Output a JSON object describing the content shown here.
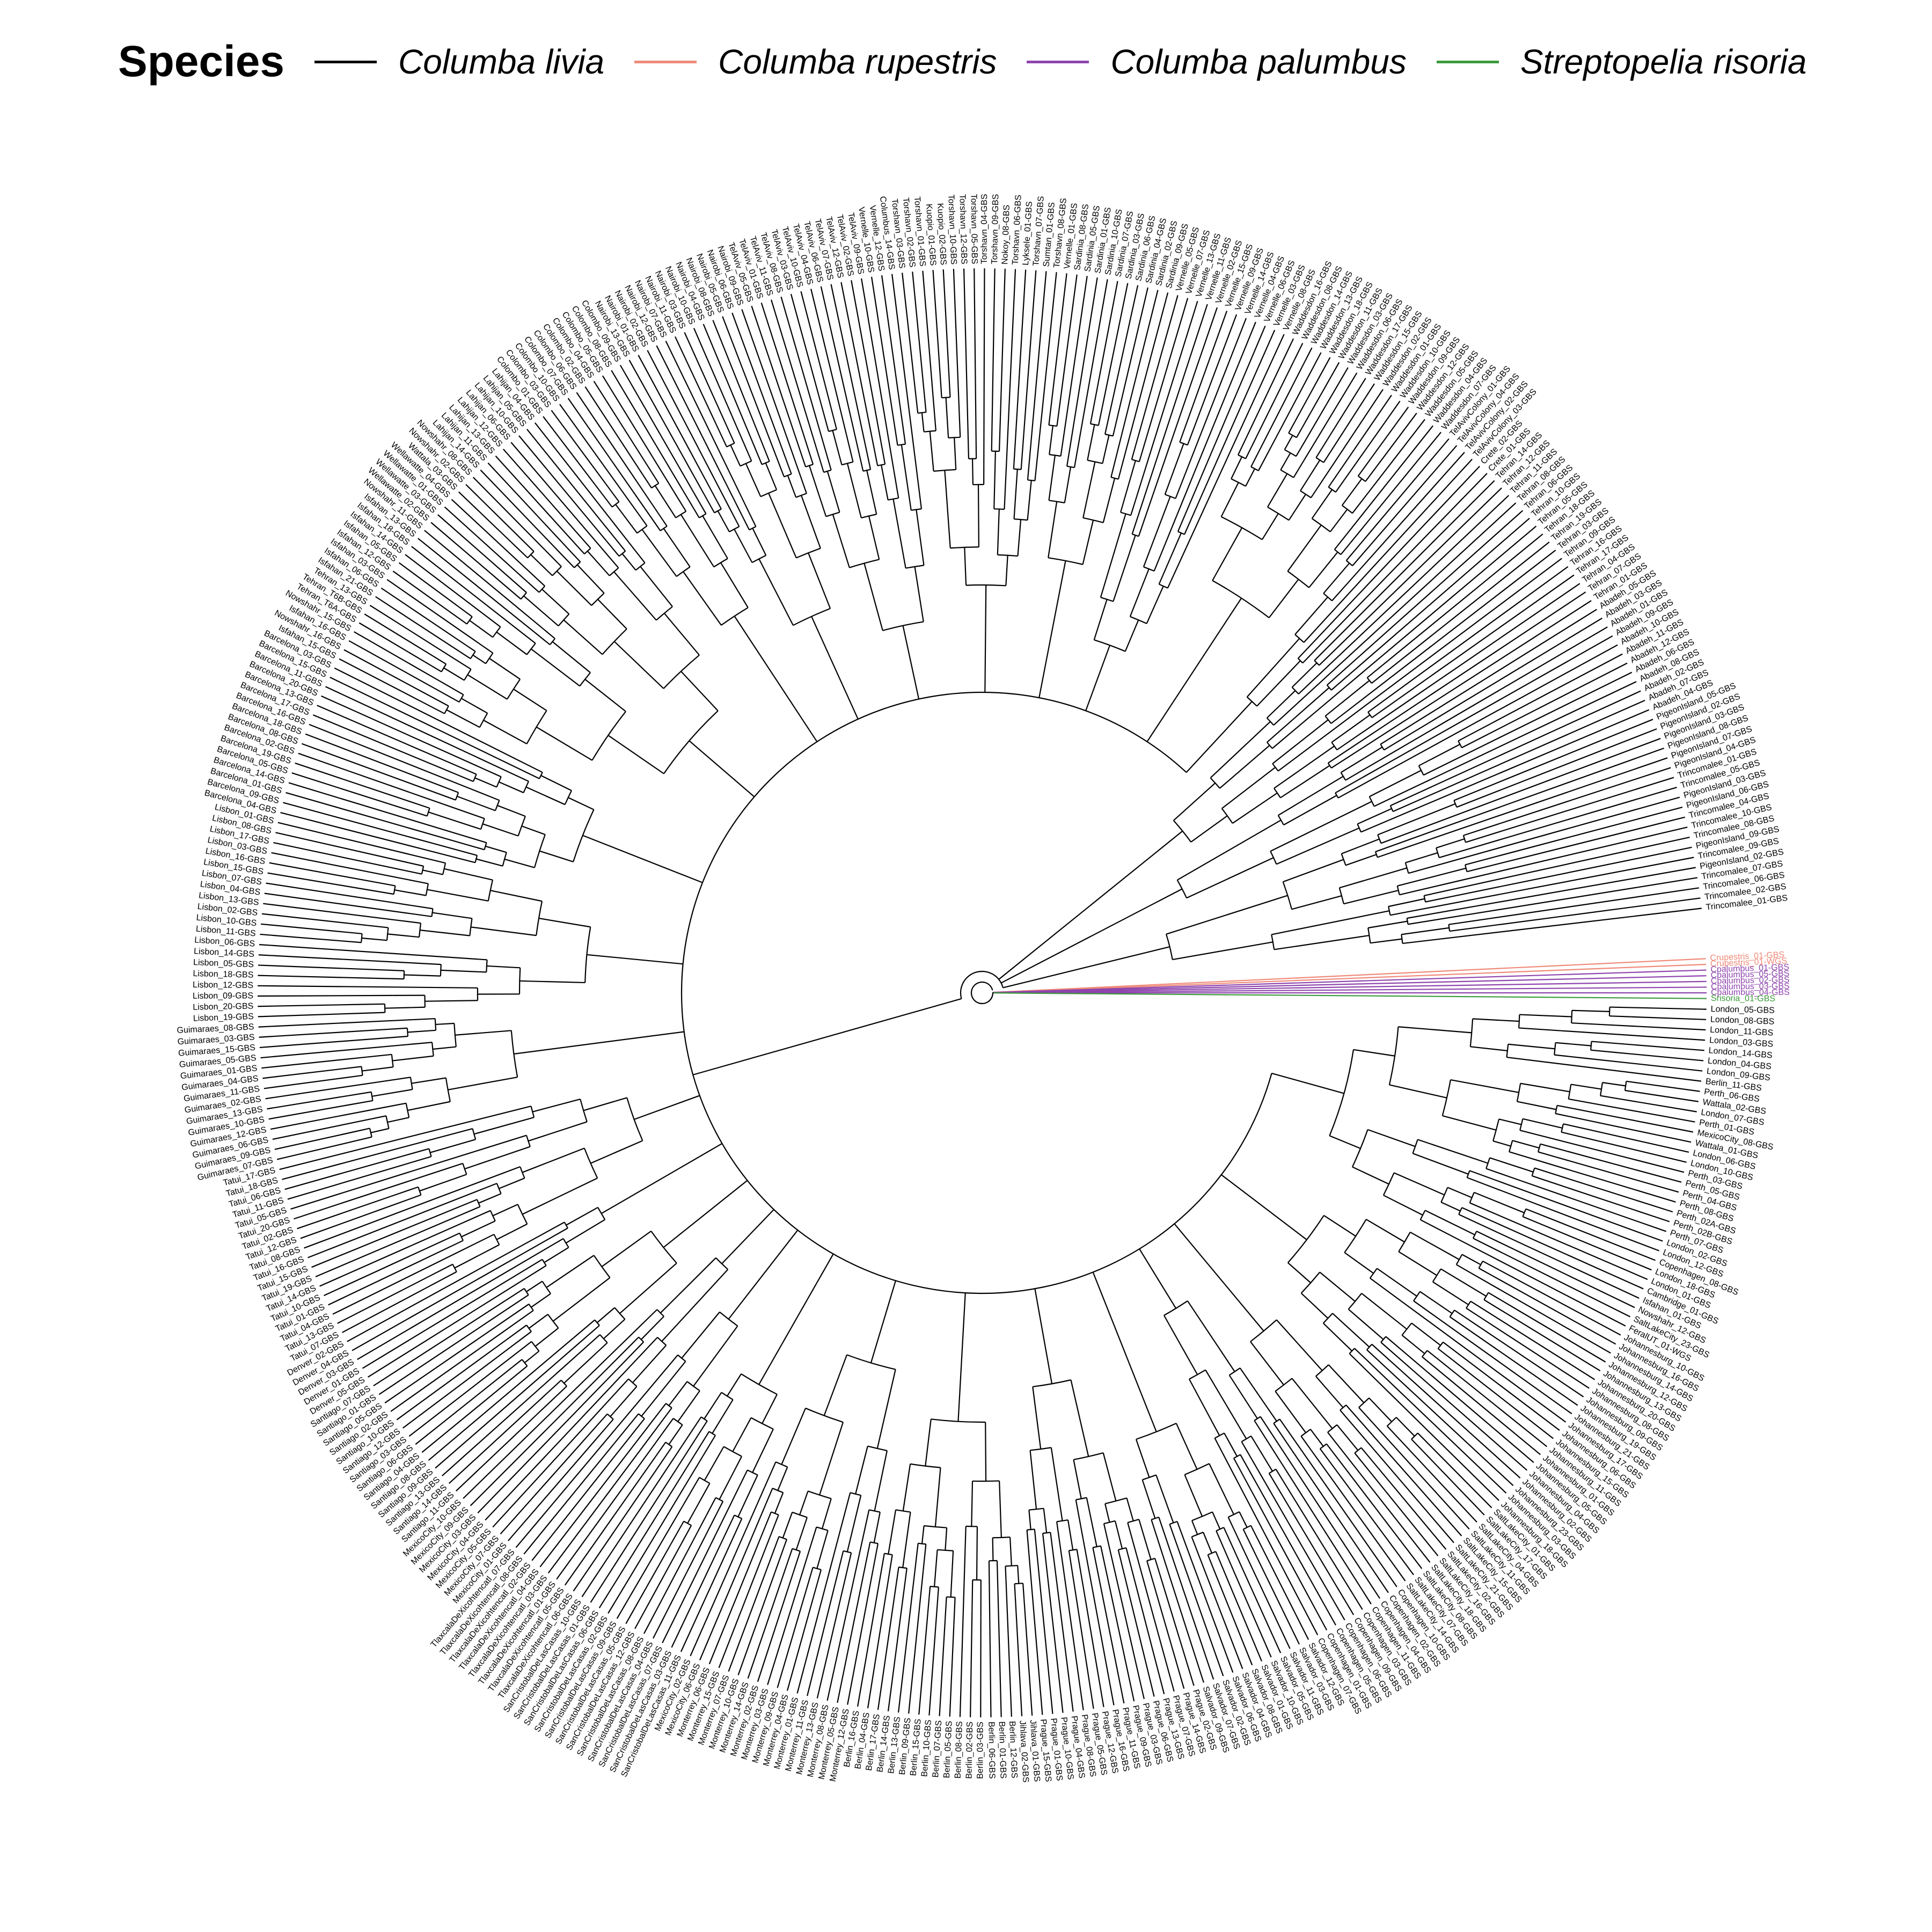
{
  "legend": {
    "title": "Species",
    "entries": [
      {
        "label": "Columba livia",
        "color": "#000000"
      },
      {
        "label": "Columba rupestris",
        "color": "#ef8a79"
      },
      {
        "label": "Columba palumbus",
        "color": "#8e44ad"
      },
      {
        "label": "Streptopelia risoria",
        "color": "#3c9a3c"
      }
    ]
  },
  "outgroups": [
    {
      "label": "Crupestris_01-GBS",
      "species": "rupestris"
    },
    {
      "label": "Crupestris_01-WGS",
      "species": "rupestris"
    },
    {
      "label": "Cpalumbus_01-GBS",
      "species": "palumbus"
    },
    {
      "label": "Cpalumbus_05-GBS",
      "species": "palumbus"
    },
    {
      "label": "Cpalumbus_02-GBS",
      "species": "palumbus"
    },
    {
      "label": "Cpalumbus_03-GBS",
      "species": "palumbus"
    },
    {
      "label": "Cpalumbus_04-GBS",
      "species": "palumbus"
    },
    {
      "label": "Srisoria_01-GBS",
      "species": "risoria"
    }
  ],
  "clades": [
    {
      "name": "London",
      "tips": [
        "London_05-GBS",
        "London_08-GBS",
        "London_11-GBS",
        "London_03-GBS",
        "London_14-GBS",
        "London_04-GBS",
        "London_09-GBS",
        "Berlin_11-GBS",
        "Perth_06-GBS",
        "Wattala_02-GBS",
        "London_07-GBS",
        "Perth_01-GBS",
        "MexicoCity_08-GBS",
        "Wattala_01-GBS",
        "London_06-GBS",
        "London_10-GBS",
        "Perth_03-GBS",
        "Perth_05-GBS",
        "Perth_04-GBS",
        "Perth_08-GBS",
        "Perth_02A-GBS",
        "Perth_02B-GBS",
        "Perth_07-GBS",
        "London_02-GBS",
        "London_12-GBS",
        "Copenhagen_08-GBS",
        "London_18-GBS",
        "London_01-GBS",
        "Cambridge_01-GBS",
        "Isfahan_01-GBS",
        "Nowshahr_12-GBS",
        "SaltLakeCity_23-GBS",
        "FeralUT_01-WGS"
      ]
    },
    {
      "name": "Johannesburg",
      "tips": [
        "Johannesburg_10-GBS",
        "Johannesburg_16-GBS",
        "Johannesburg_14-GBS",
        "Johannesburg_12-GBS",
        "Johannesburg_13-GBS",
        "Johannesburg_20-GBS",
        "Johannesburg_08-GBS",
        "Johannesburg_09-GBS",
        "Johannesburg_19-GBS",
        "Johannesburg_21-GBS",
        "Johannesburg_17-GBS",
        "Johannesburg_06-GBS",
        "Johannesburg_15-GBS",
        "Johannesburg_11-GBS",
        "Johannesburg_01-GBS",
        "Johannesburg_05-GBS",
        "Johannesburg_04-GBS",
        "Johannesburg_02-GBS",
        "Johannesburg_23-GBS",
        "Johannesburg_03-GBS",
        "Johannesburg_18-GBS"
      ]
    },
    {
      "name": "SaltLakeCity",
      "tips": [
        "SaltLakeCity_01-GBS",
        "SaltLakeCity_17-GBS",
        "SaltLakeCity_04-GBS",
        "SaltLakeCity_11-GBS",
        "SaltLakeCity_15-GBS",
        "SaltLakeCity_21-GBS",
        "SaltLakeCity_02-GBS",
        "SaltLakeCity_16-GBS",
        "SaltLakeCity_18-GBS",
        "SaltLakeCity_08-GBS",
        "SaltLakeCity_07-GBS",
        "SaltLakeCity_14-GBS"
      ]
    },
    {
      "name": "Copenhagen",
      "tips": [
        "Copenhagen_10-GBS",
        "Copenhagen_02-GBS",
        "Copenhagen_04-GBS",
        "Copenhagen_11-GBS",
        "Copenhagen_03-GBS",
        "Copenhagen_09-GBS",
        "Copenhagen_06-GBS",
        "Copenhagen_05-GBS",
        "Copenhagen_01-GBS",
        "Copenhagen_07-GBS"
      ]
    },
    {
      "name": "Salvador",
      "tips": [
        "Salvador_12-GBS",
        "Salvador_03-GBS",
        "Salvador_11-GBS",
        "Salvador_05-GBS",
        "Salvador_10-GBS",
        "Salvador_01-GBS",
        "Salvador_08-GBS",
        "Salvador_04-GBS",
        "Salvador_06-GBS",
        "Salvador_02-GBS",
        "Salvador_07-GBS",
        "Salvador_09-GBS"
      ]
    },
    {
      "name": "Prague",
      "tips": [
        "Prague_02-GBS",
        "Prague_14-GBS",
        "Prague_07-GBS",
        "Prague_13-GBS",
        "Prague_06-GBS",
        "Prague_03-GBS",
        "Prague_09-GBS",
        "Prague_11-GBS",
        "Prague_16-GBS",
        "Prague_12-GBS",
        "Prague_05-GBS",
        "Prague_08-GBS",
        "Prague_04-GBS",
        "Prague_10-GBS",
        "Prague_01-GBS",
        "Prague_15-GBS"
      ]
    },
    {
      "name": "Berlin",
      "tips": [
        "Jihlava_01-GBS",
        "Jihlava_02-GBS",
        "Berlin_12-GBS",
        "Berlin_01-GBS",
        "Berlin_06-GBS",
        "Berlin_03-GBS",
        "Berlin_02-GBS",
        "Berlin_08-GBS",
        "Berlin_05-GBS",
        "Berlin_07-GBS",
        "Berlin_10-GBS",
        "Berlin_15-GBS",
        "Berlin_09-GBS",
        "Berlin_13-GBS",
        "Berlin_14-GBS",
        "Berlin_17-GBS",
        "Berlin_04-GBS",
        "Berlin_16-GBS"
      ]
    },
    {
      "name": "Monterrey",
      "tips": [
        "Monterrey_12-GBS",
        "Monterrey_05-GBS",
        "Monterrey_08-GBS",
        "Monterrey_13-GBS",
        "Monterrey_11-GBS",
        "Monterrey_01-GBS",
        "Monterrey_04-GBS",
        "Monterrey_09-GBS",
        "Monterrey_03-GBS",
        "Monterrey_02-GBS",
        "Monterrey_14-GBS",
        "Monterrey_10-GBS",
        "Monterrey_07-GBS",
        "Monterrey_15-GBS",
        "Monterrey_06-GBS",
        "MexicoCity_06-GBS",
        "MexicoCity_02-GBS"
      ]
    },
    {
      "name": "SanCristobal",
      "tips": [
        "SanCristobalDeLasCasas_11-GBS",
        "SanCristobalDeLasCasas_03-GBS",
        "SanCristobalDeLasCasas_07-GBS",
        "SanCristobalDeLasCasas_04-GBS",
        "SanCristobalDeLasCasas_08-GBS",
        "SanCristobalDeLasCasas_12-GBS",
        "SanCristobalDeLasCasas_05-GBS",
        "SanCristobalDeLasCasas_09-GBS",
        "SanCristobalDeLasCasas_02-GBS",
        "SanCristobalDeLasCasas_06-GBS",
        "SanCristobalDeLasCasas_01-GBS",
        "SanCristobalDeLasCasas_10-GBS"
      ]
    },
    {
      "name": "TlaxcalaDeXicohtencatl",
      "tips": [
        "TlaxcalaDeXicohtencatl_06-GBS",
        "TlaxcalaDeXicohtencatl_05-GBS",
        "TlaxcalaDeXicohtencatl_01-GBS",
        "TlaxcalaDeXicohtencatl_03-GBS",
        "TlaxcalaDeXicohtencatl_04-GBS",
        "TlaxcalaDeXicohtencatl_02-GBS",
        "TlaxcalaDeXicohtencatl_08-GBS",
        "TlaxcalaDeXicohtencatl_07-GBS"
      ]
    },
    {
      "name": "MexicoCity",
      "tips": [
        "MexicoCity_01-GBS",
        "MexicoCity_07-GBS",
        "MexicoCity_05-GBS",
        "MexicoCity_04-GBS",
        "MexicoCity_03-GBS",
        "MexicoCity_09-GBS",
        "MexicoCity_10-GBS"
      ]
    },
    {
      "name": "Santiago",
      "tips": [
        "Santiago_11-GBS",
        "Santiago_14-GBS",
        "Santiago_13-GBS",
        "Santiago_09-GBS",
        "Santiago_08-GBS",
        "Santiago_04-GBS",
        "Santiago_06-GBS",
        "Santiago_03-GBS",
        "Santiago_12-GBS",
        "Santiago_10-GBS",
        "Santiago_02-GBS",
        "Santiago_05-GBS",
        "Santiago_01-GBS",
        "Santiago_07-GBS"
      ]
    },
    {
      "name": "Denver",
      "tips": [
        "Denver_05-GBS",
        "Denver_01-GBS",
        "Denver_03-GBS",
        "Denver_04-GBS",
        "Denver_02-GBS"
      ]
    },
    {
      "name": "Tatui",
      "tips": [
        "Tatui_07-GBS",
        "Tatui_13-GBS",
        "Tatui_04-GBS",
        "Tatui_01-GBS",
        "Tatui_10-GBS",
        "Tatui_14-GBS",
        "Tatui_19-GBS",
        "Tatui_15-GBS",
        "Tatui_16-GBS",
        "Tatui_08-GBS",
        "Tatui_12-GBS",
        "Tatui_02-GBS",
        "Tatui_20-GBS",
        "Tatui_05-GBS",
        "Tatui_11-GBS",
        "Tatui_06-GBS",
        "Tatui_18-GBS",
        "Tatui_17-GBS"
      ]
    },
    {
      "name": "Guimaraes",
      "tips": [
        "Guimaraes_07-GBS",
        "Guimaraes_09-GBS",
        "Guimaraes_06-GBS",
        "Guimaraes_12-GBS",
        "Guimaraes_10-GBS",
        "Guimaraes_13-GBS",
        "Guimaraes_02-GBS",
        "Guimaraes_11-GBS",
        "Guimaraes_04-GBS",
        "Guimaraes_01-GBS",
        "Guimaraes_05-GBS",
        "Guimaraes_15-GBS",
        "Guimaraes_03-GBS",
        "Guimaraes_08-GBS"
      ]
    },
    {
      "name": "Lisbon",
      "tips": [
        "Lisbon_19-GBS",
        "Lisbon_20-GBS",
        "Lisbon_09-GBS",
        "Lisbon_12-GBS",
        "Lisbon_18-GBS",
        "Lisbon_05-GBS",
        "Lisbon_14-GBS",
        "Lisbon_06-GBS",
        "Lisbon_11-GBS",
        "Lisbon_10-GBS",
        "Lisbon_02-GBS",
        "Lisbon_13-GBS",
        "Lisbon_04-GBS",
        "Lisbon_07-GBS",
        "Lisbon_15-GBS",
        "Lisbon_16-GBS",
        "Lisbon_03-GBS",
        "Lisbon_17-GBS",
        "Lisbon_08-GBS",
        "Lisbon_01-GBS"
      ]
    },
    {
      "name": "Barcelona",
      "tips": [
        "Barcelona_04-GBS",
        "Barcelona_09-GBS",
        "Barcelona_01-GBS",
        "Barcelona_14-GBS",
        "Barcelona_05-GBS",
        "Barcelona_19-GBS",
        "Barcelona_02-GBS",
        "Barcelona_08-GBS",
        "Barcelona_18-GBS",
        "Barcelona_16-GBS",
        "Barcelona_17-GBS",
        "Barcelona_13-GBS",
        "Barcelona_20-GBS",
        "Barcelona_11-GBS",
        "Barcelona_15-GBS",
        "Barcelona_03-GBS"
      ]
    },
    {
      "name": "Isfahan",
      "tips": [
        "Isfahan_15-GBS",
        "Nowshahr_16-GBS",
        "Isfahan_16-GBS",
        "Nowshahr_15-GBS",
        "Tehran_T6A-GBS",
        "Tehran_T6B-GBS",
        "Tehran_13-GBS",
        "Isfahan_21-GBS",
        "Isfahan_06-GBS",
        "Isfahan_03-GBS",
        "Isfahan_12-GBS",
        "Isfahan_05-GBS",
        "Isfahan_14-GBS",
        "Isfahan_18-GBS",
        "Isfahan_13-GBS",
        "Nowshahr_11-GBS",
        "Wellawatte_02-GBS",
        "Wellawatte_03-GBS",
        "Wellawatte_01-GBS",
        "Wellawatte_04-GBS",
        "Wattala_03-GBS",
        "Nowshahr_02-GBS",
        "Nowshahr_08-GBS",
        "Lahijan_14-GBS",
        "Lahijan_11-GBS",
        "Lahijan_13-GBS",
        "Lahijan_12-GBS",
        "Lahijan_06-GBS",
        "Lahijan_10-GBS",
        "Lahijan_05-GBS",
        "Lahijan_04-GBS"
      ]
    },
    {
      "name": "Colombo",
      "tips": [
        "Colombo_01-GBS",
        "Colombo_03-GBS",
        "Colombo_10-GBS",
        "Colombo_07-GBS",
        "Colombo_06-GBS",
        "Colombo_02-GBS",
        "Colombo_04-GBS",
        "Colombo_05-GBS",
        "Colombo_08-GBS",
        "Colombo_09-GBS"
      ]
    },
    {
      "name": "Nairobi",
      "tips": [
        "Nairobi_13-GBS",
        "Nairobi_01-GBS",
        "Nairobi_02-GBS",
        "Nairobi_12-GBS",
        "Nairobi_07-GBS",
        "Nairobi_11-GBS",
        "Nairobi_03-GBS",
        "Nairobi_10-GBS",
        "Nairobi_04-GBS",
        "Nairobi_08-GBS",
        "Nairobi_05-GBS",
        "Nairobi_06-GBS",
        "Nairobi_09-GBS"
      ]
    },
    {
      "name": "TelAviv",
      "tips": [
        "TelAviv_05-GBS",
        "TelAviv_01-GBS",
        "TelAviv_11-GBS",
        "TelAviv_08-GBS",
        "TelAviv_03-GBS",
        "TelAviv_10-GBS",
        "TelAviv_04-GBS",
        "TelAviv_06-GBS",
        "TelAviv_07-GBS",
        "TelAviv_12-GBS",
        "TelAviv_02-GBS",
        "TelAviv_09-GBS",
        "Vernelle_10-GBS",
        "Vernelle_12-GBS",
        "Columbus_14-GBS"
      ]
    },
    {
      "name": "Torshavn",
      "tips": [
        "Torshavn_03-GBS",
        "Torshavn_02-GBS",
        "Torshavn_01-GBS",
        "Kuopio_01-GBS",
        "Kuopio_02-GBS",
        "Torshavn_10-GBS",
        "Torshavn_12-GBS",
        "Torshavn_05-GBS",
        "Torshavn_04-GBS",
        "Torshavn_09-GBS",
        "Nokoy_08-GBS",
        "Torshavn_06-GBS",
        "Lyksele_01-GBS",
        "Torshavn_07-GBS",
        "Sumtan_01-GBS",
        "Torshavn_08-GBS"
      ]
    },
    {
      "name": "Sardinia",
      "tips": [
        "Vernelle_01-GBS",
        "Sardinia_08-GBS",
        "Sardinia_05-GBS",
        "Sardinia_01-GBS",
        "Sardinia_10-GBS",
        "Sardinia_07-GBS",
        "Sardinia_03-GBS",
        "Sardinia_06-GBS",
        "Sardinia_04-GBS",
        "Sardinia_02-GBS",
        "Sardinia_09-GBS"
      ]
    },
    {
      "name": "Vernelle",
      "tips": [
        "Vernelle_05-GBS",
        "Vernelle_07-GBS",
        "Vernelle_13-GBS",
        "Vernelle_11-GBS",
        "Vernelle_02-GBS",
        "Vernelle_15-GBS",
        "Vernelle_09-GBS",
        "Vernelle_14-GBS",
        "Vernelle_04-GBS",
        "Vernelle_06-GBS",
        "Vernelle_03-GBS",
        "Vernelle_08-GBS"
      ]
    },
    {
      "name": "Waddesdon",
      "tips": [
        "Waddesdon_16-GBS",
        "Waddesdon_08-GBS",
        "Waddesdon_14-GBS",
        "Waddesdon_13-GBS",
        "Waddesdon_18-GBS",
        "Waddesdon_11-GBS",
        "Waddesdon_03-GBS",
        "Waddesdon_06-GBS",
        "Waddesdon_17-GBS",
        "Waddesdon_15-GBS",
        "Waddesdon_02-GBS",
        "Waddesdon_01-GBS",
        "Waddesdon_10-GBS",
        "Waddesdon_09-GBS",
        "Waddesdon_12-GBS",
        "Waddesdon_05-GBS",
        "Waddesdon_04-GBS",
        "Waddesdon_07-GBS"
      ]
    },
    {
      "name": "TelAvivColony",
      "tips": [
        "TelAvivColony_01-GBS",
        "TelAvivColony_04-GBS",
        "TelAvivColony_02-GBS",
        "TelAvivColony_03-GBS",
        "Crete_02-GBS",
        "Crete_01-GBS"
      ]
    },
    {
      "name": "Tehran",
      "tips": [
        "Tehran_14-GBS",
        "Tehran_12-GBS",
        "Tehran_11-GBS",
        "Tehran_08-GBS",
        "Tehran_06-GBS",
        "Tehran_10-GBS",
        "Tehran_05-GBS",
        "Tehran_18-GBS",
        "Tehran_19-GBS",
        "Tehran_03-GBS",
        "Tehran_09-GBS",
        "Tehran_16-GBS",
        "Tehran_17-GBS",
        "Tehran_04-GBS",
        "Tehran_07-GBS",
        "Tehran_01-GBS"
      ]
    },
    {
      "name": "Abadeh",
      "tips": [
        "Abadeh_05-GBS",
        "Abadeh_03-GBS",
        "Abadeh_01-GBS",
        "Abadeh_09-GBS",
        "Abadeh_10-GBS",
        "Abadeh_11-GBS",
        "Abadeh_12-GBS",
        "Abadeh_06-GBS",
        "Abadeh_08-GBS",
        "Abadeh_02-GBS",
        "Abadeh_07-GBS",
        "Abadeh_04-GBS"
      ]
    },
    {
      "name": "PigeonIsland",
      "tips": [
        "PigeonIsland_05-GBS",
        "PigeonIsland_02-GBS",
        "PigeonIsland_03-GBS",
        "PigeonIsland_08-GBS",
        "PigeonIsland_07-GBS",
        "PigeonIsland_04-GBS",
        "Trincomalee_01-GBS",
        "Trincomalee_05-GBS",
        "PigeonIsland_03-GBS",
        "PigeonIsland_06-GBS",
        "Trincomalee_04-GBS",
        "Trincomalee_10-GBS",
        "Trincomalee_08-GBS",
        "PigeonIsland_09-GBS",
        "Trincomalee_09-GBS",
        "PigeonIsland_02-GBS",
        "Trincomalee_07-GBS",
        "Trincomalee_06-GBS",
        "Trincomalee_02-GBS",
        "Trincomalee_01-GBS"
      ]
    }
  ]
}
